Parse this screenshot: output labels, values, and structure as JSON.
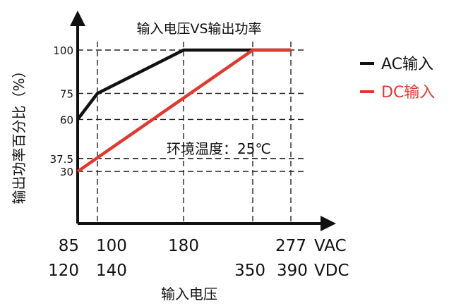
{
  "chart_data": {
    "type": "line",
    "title": "输入电压VS输出功率",
    "xlabel": "输入电压",
    "ylabel": "输出功率百分比（%）",
    "annotation": "环境温度：25℃",
    "ylim": [
      0,
      100
    ],
    "y_ticks": [
      30,
      37.5,
      60,
      75,
      100
    ],
    "y_tick_labels": [
      "30",
      "37.5",
      "60",
      "75",
      "100"
    ],
    "x_axis_rows": [
      {
        "unit": "VAC",
        "ticks": [
          {
            "value": 85,
            "label": "85"
          },
          {
            "value": 100,
            "label": "100"
          },
          {
            "value": 180,
            "label": "180"
          },
          {
            "value": 277,
            "label": "277"
          }
        ]
      },
      {
        "unit": "VDC",
        "ticks": [
          {
            "value": 120,
            "label": "120"
          },
          {
            "value": 140,
            "label": "140"
          },
          {
            "value": 350,
            "label": "350"
          },
          {
            "value": 390,
            "label": "390"
          }
        ]
      }
    ],
    "series": [
      {
        "name": "AC输入",
        "color": "#111111",
        "x_unit": "VAC",
        "points": [
          {
            "x": 85,
            "y": 60
          },
          {
            "x": 100,
            "y": 75
          },
          {
            "x": 180,
            "y": 100
          },
          {
            "x": 277,
            "y": 100
          }
        ]
      },
      {
        "name": "DC输入",
        "color": "#e03a2f",
        "x_unit": "VDC",
        "points": [
          {
            "x": 120,
            "y": 30
          },
          {
            "x": 350,
            "y": 100
          },
          {
            "x": 390,
            "y": 100
          }
        ]
      }
    ],
    "grid": "dashed",
    "legend_position": "right"
  }
}
